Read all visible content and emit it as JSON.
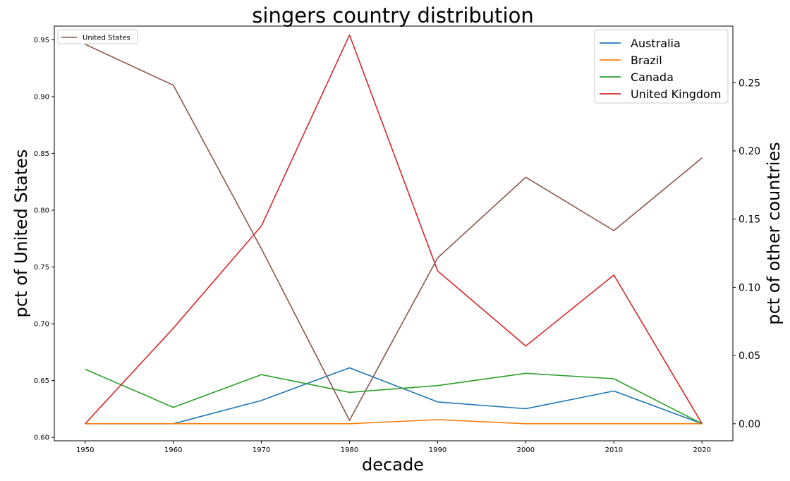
{
  "chart_data": {
    "type": "line",
    "title": "singers country distribution",
    "xlabel": "decade",
    "x": [
      1950,
      1960,
      1970,
      1980,
      1990,
      2000,
      2010,
      2020
    ],
    "xticks": [
      "1950",
      "1960",
      "1970",
      "1980",
      "1990",
      "2000",
      "2010",
      "2020"
    ],
    "left_axis": {
      "ylabel": "pct of United States",
      "ylim": [
        0.597,
        0.962
      ],
      "ticks": [
        0.6,
        0.65,
        0.7,
        0.75,
        0.8,
        0.85,
        0.9,
        0.95
      ],
      "tick_labels": [
        "0.60",
        "0.65",
        "0.70",
        "0.75",
        "0.80",
        "0.85",
        "0.90",
        "0.95"
      ],
      "legend_position": "upper-left",
      "series": [
        {
          "name": "United States",
          "color": "#8c564b",
          "values": [
            0.946,
            0.91,
            0.766,
            0.615,
            0.758,
            0.829,
            0.782,
            0.846
          ]
        }
      ]
    },
    "right_axis": {
      "ylabel": "pct of other countries",
      "ylim": [
        -0.0125,
        0.2915
      ],
      "ticks": [
        0.0,
        0.05,
        0.1,
        0.15,
        0.2,
        0.25
      ],
      "tick_labels": [
        "0.00",
        "0.05",
        "0.10",
        "0.15",
        "0.20",
        "0.25"
      ],
      "legend_position": "upper-right",
      "series": [
        {
          "name": "Australia",
          "color": "#1f77b4",
          "values": [
            0.0,
            0.0,
            0.017,
            0.041,
            0.016,
            0.011,
            0.024,
            0.0
          ]
        },
        {
          "name": "Brazil",
          "color": "#ff7f0e",
          "values": [
            0.0,
            0.0,
            0.0,
            0.0,
            0.003,
            0.0,
            0.0,
            0.0
          ]
        },
        {
          "name": "Canada",
          "color": "#2ca02c",
          "values": [
            0.04,
            0.012,
            0.036,
            0.023,
            0.028,
            0.037,
            0.033,
            0.0
          ]
        },
        {
          "name": "United Kingdom",
          "color": "#d62728",
          "values": [
            0.0,
            0.07,
            0.145,
            0.285,
            0.112,
            0.057,
            0.109,
            0.0
          ]
        }
      ]
    },
    "grid": false
  }
}
